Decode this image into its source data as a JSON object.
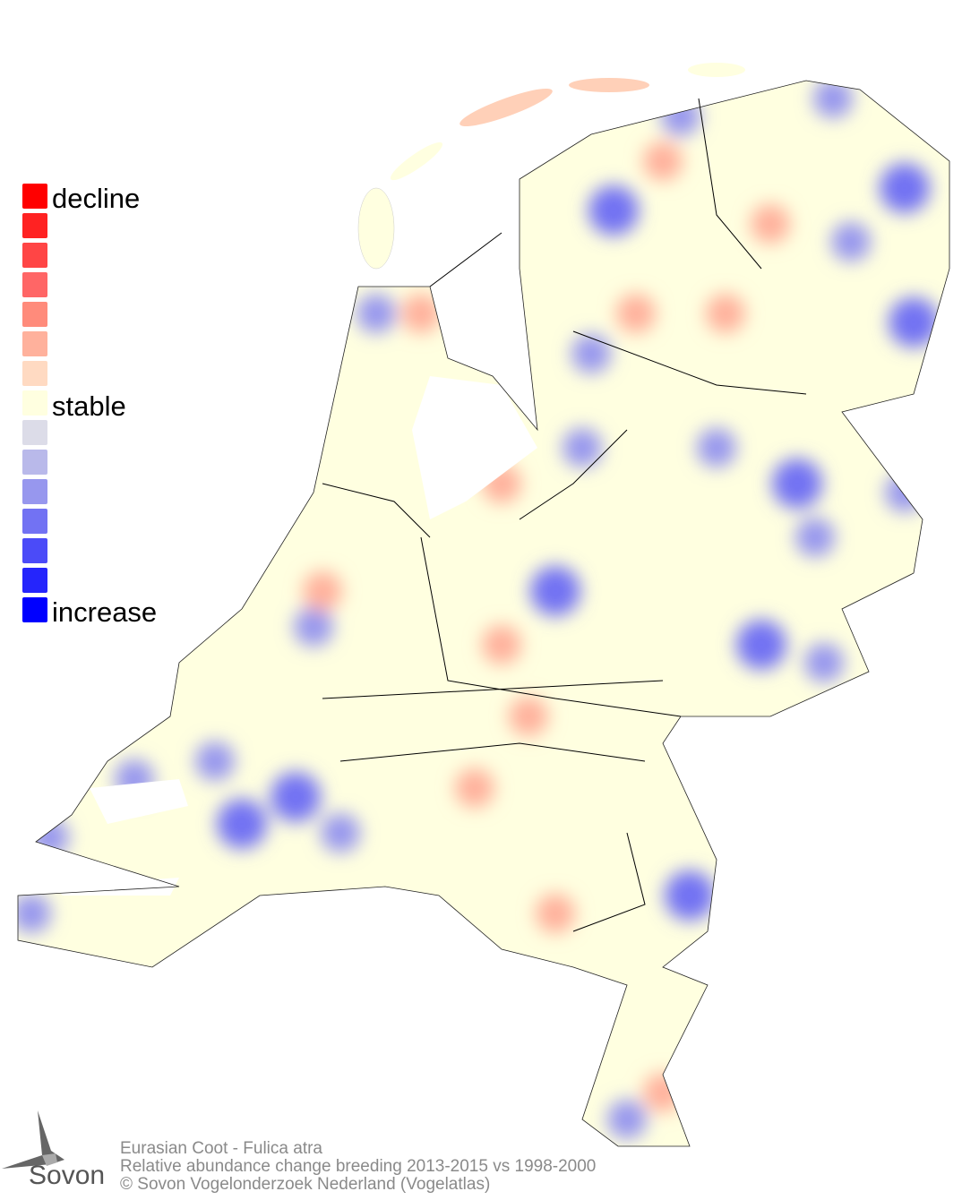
{
  "legend": {
    "labels": {
      "top": "decline",
      "middle": "stable",
      "bottom": "increase"
    },
    "colors": [
      "#ff0000",
      "#ff2222",
      "#ff4545",
      "#ff6666",
      "#ff8b7b",
      "#ffb19c",
      "#ffdac2",
      "#ffffe0",
      "#dcdce8",
      "#b9b9ea",
      "#9797ee",
      "#7272f3",
      "#4b4bf8",
      "#2525fc",
      "#0000ff"
    ]
  },
  "map": {
    "land_color": "#ffffe0",
    "border_color": "#000000",
    "decline_color": "#ffb19c",
    "increase_color": "#9797ee"
  },
  "footer": {
    "species": "Eurasian Coot - Fulica atra",
    "description": "Relative abundance change breeding 2013-2015 vs 1998-2000",
    "copyright": "© Sovon Vogelonderzoek Nederland (Vogelatlas)"
  },
  "logo": {
    "text": "Sovon"
  }
}
